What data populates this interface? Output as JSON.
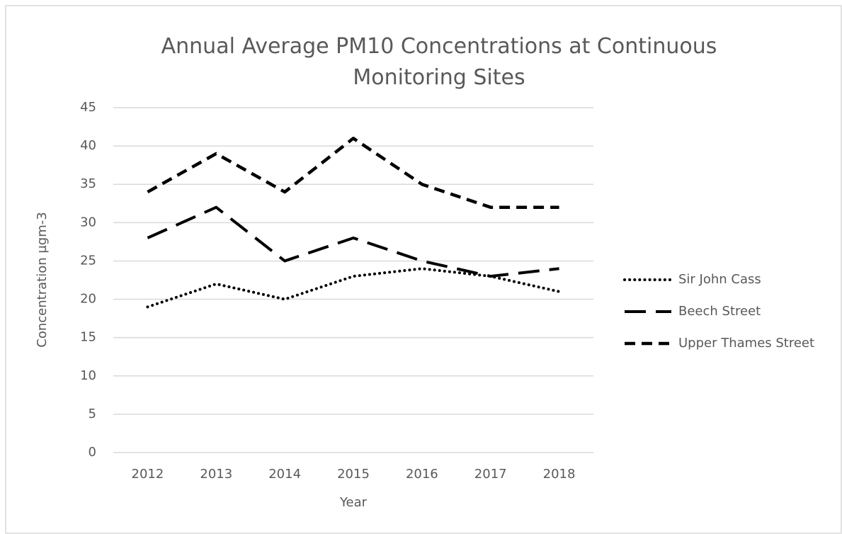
{
  "chart_data": {
    "type": "line",
    "title": "Annual Average PM10 Concentrations at Continuous Monitoring Sites",
    "x_label": "Year",
    "y_label": "Concentration µgm-3",
    "categories": [
      "2012",
      "2013",
      "2014",
      "2015",
      "2016",
      "2017",
      "2018"
    ],
    "series": [
      {
        "name": "Sir John Cass",
        "color": "#000000",
        "dash": "dotted",
        "values": [
          19,
          22,
          20,
          23,
          24,
          23,
          21
        ]
      },
      {
        "name": "Beech Street",
        "color": "#000000",
        "dash": "long-dash",
        "values": [
          28,
          32,
          25,
          28,
          25,
          23,
          24
        ]
      },
      {
        "name": "Upper Thames Street",
        "color": "#000000",
        "dash": "dash",
        "values": [
          34,
          39,
          34,
          41,
          35,
          32,
          32
        ]
      }
    ],
    "ylim": [
      0,
      45
    ],
    "yticks": [
      0,
      5,
      10,
      15,
      20,
      25,
      30,
      35,
      40,
      45
    ],
    "grid": true,
    "legend": "right"
  }
}
